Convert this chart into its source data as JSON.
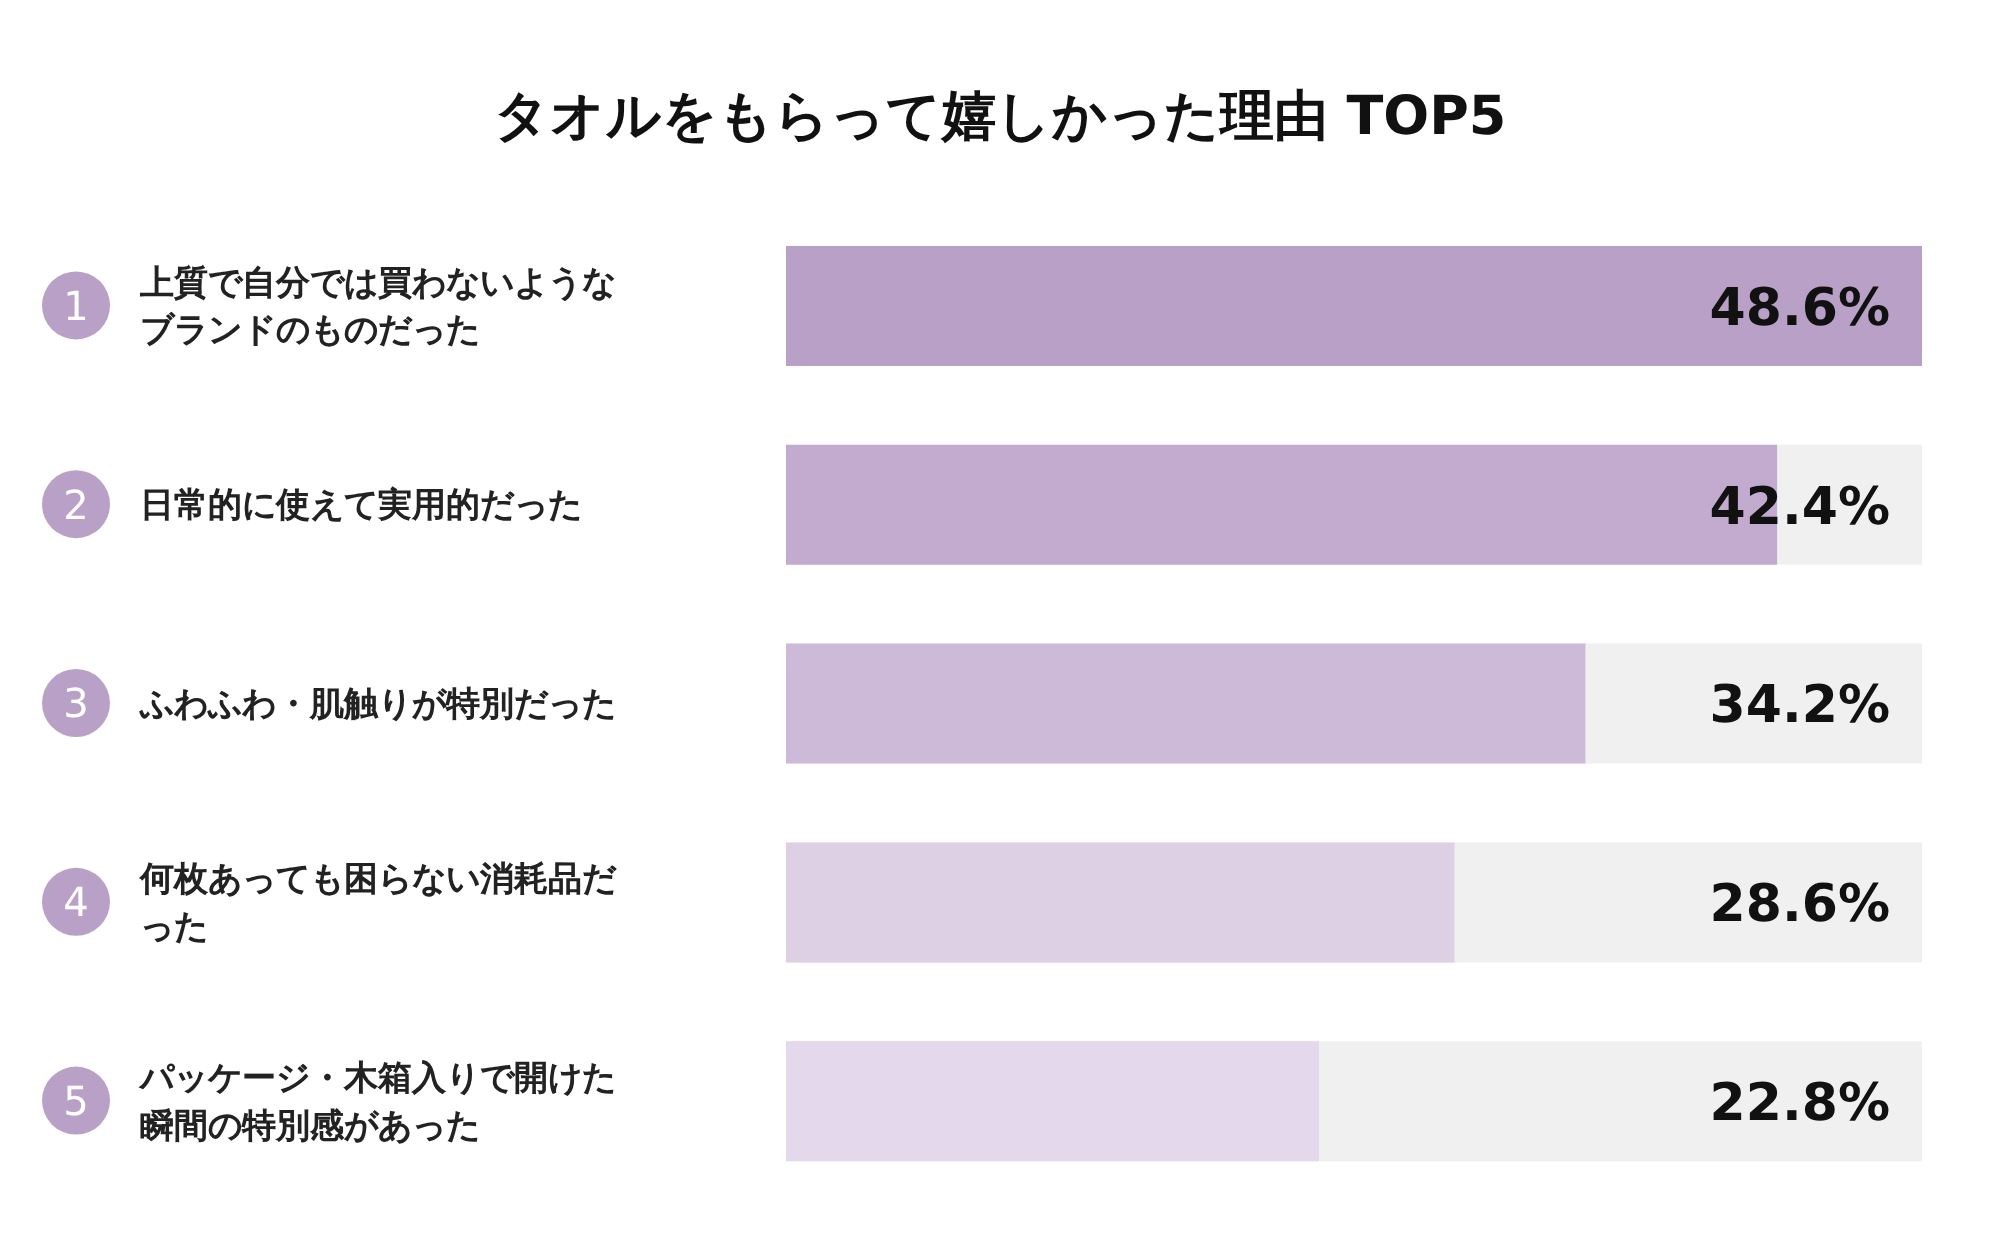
{
  "chart_data": {
    "type": "bar",
    "orientation": "horizontal",
    "title": "タオルをもらって嬉しかった理由 TOP5",
    "categories": [
      "上質で自分では買わないようなブランドのものだった",
      "日常的に使えて実用的だった",
      "ふわふわ・肌触りが特別だった",
      "何枚あっても困らない消耗品だった",
      "パッケージ・木箱入りで開けた瞬間の特別感があった"
    ],
    "values": [
      48.6,
      42.4,
      34.2,
      28.6,
      22.8
    ],
    "colors": [
      "#b9a0c6",
      "#c3abcf",
      "#cdb9d8",
      "#ddd0e4",
      "#e4d8ec"
    ],
    "value_labels": [
      "48.6%",
      "42.4%",
      "34.2%",
      "28.6%",
      "22.8%"
    ],
    "annotations": [
      "1",
      "2",
      "3",
      "4",
      "5"
    ],
    "grid": false,
    "legend": false
  }
}
